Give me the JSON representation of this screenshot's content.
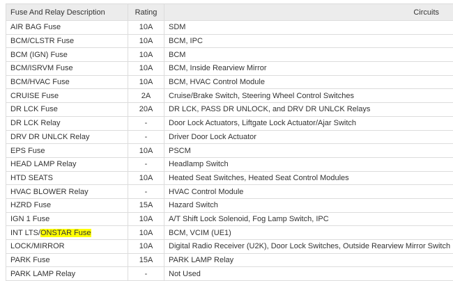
{
  "table": {
    "header": [
      "Fuse And Relay Description",
      "Rating",
      "Circuits"
    ],
    "rows": [
      [
        "AIR BAG Fuse",
        "10A",
        "SDM"
      ],
      [
        "BCM/CLSTR Fuse",
        "10A",
        "BCM, IPC"
      ],
      [
        "BCM (IGN) Fuse",
        "10A",
        "BCM"
      ],
      [
        "BCM/ISRVM Fuse",
        "10A",
        "BCM, Inside Rearview Mirror"
      ],
      [
        "BCM/HVAC Fuse",
        "10A",
        "BCM, HVAC Control Module"
      ],
      [
        "CRUISE Fuse",
        "2A",
        "Cruise/Brake Switch, Steering Wheel Control Switches"
      ],
      [
        "DR LCK Fuse",
        "20A",
        "DR LCK, PASS DR UNLOCK, and DRV DR UNLCK Relays"
      ],
      [
        "DR LCK Relay",
        "-",
        "Door Lock Actuators, Liftgate Lock Actuator/Ajar Switch"
      ],
      [
        "DRV DR UNLCK Relay",
        "-",
        "Driver Door Lock Actuator"
      ],
      [
        "EPS Fuse",
        "10A",
        "PSCM"
      ],
      [
        "HEAD LAMP Relay",
        "-",
        "Headlamp Switch"
      ],
      [
        "HTD SEATS",
        "10A",
        "Heated Seat Switches, Heated Seat Control Modules"
      ],
      [
        "HVAC BLOWER Relay",
        "-",
        "HVAC Control Module"
      ],
      [
        "HZRD Fuse",
        "15A",
        "Hazard Switch"
      ],
      [
        "IGN 1 Fuse",
        "10A",
        "A/T Shift Lock Solenoid, Fog Lamp Switch, IPC"
      ],
      [
        [
          "INT LTS/",
          "ONSTAR Fuse"
        ],
        "10A",
        "BCM, VCIM (UE1)"
      ],
      [
        "LOCK/MIRROR",
        "10A",
        "Digital Radio Receiver (U2K), Door Lock Switches, Outside Rearview Mirror Switch"
      ],
      [
        "PARK Fuse",
        "15A",
        "PARK LAMP Relay"
      ],
      [
        "PARK LAMP Relay",
        "-",
        "Not Used"
      ]
    ]
  }
}
